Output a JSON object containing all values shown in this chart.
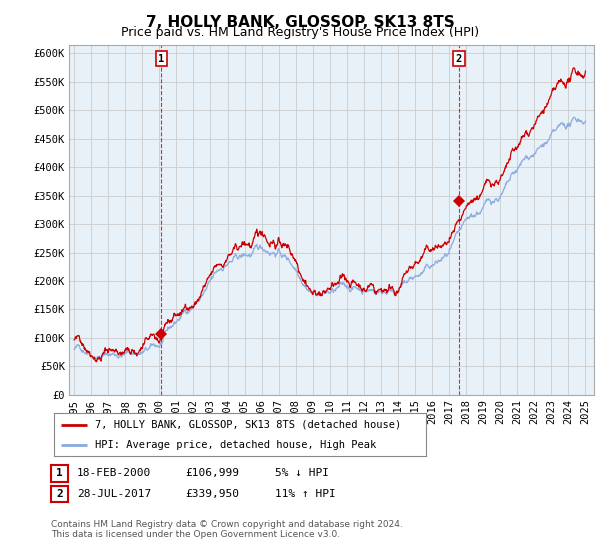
{
  "title": "7, HOLLY BANK, GLOSSOP, SK13 8TS",
  "subtitle": "Price paid vs. HM Land Registry's House Price Index (HPI)",
  "yticks": [
    0,
    50000,
    100000,
    150000,
    200000,
    250000,
    300000,
    350000,
    400000,
    450000,
    500000,
    550000,
    600000
  ],
  "ylim": [
    0,
    615000
  ],
  "xlim_start": 1994.7,
  "xlim_end": 2025.5,
  "sale1_x": 2000.12,
  "sale1_y": 106999,
  "sale1_label": "1",
  "sale1_date": "18-FEB-2000",
  "sale1_price": "£106,999",
  "sale1_note": "5% ↓ HPI",
  "sale2_x": 2017.58,
  "sale2_y": 339950,
  "sale2_label": "2",
  "sale2_date": "28-JUL-2017",
  "sale2_price": "£339,950",
  "sale2_note": "11% ↑ HPI",
  "line_house_color": "#cc0000",
  "line_hpi_color": "#88aadd",
  "chart_bg_color": "#e8f0f8",
  "legend_house_label": "7, HOLLY BANK, GLOSSOP, SK13 8TS (detached house)",
  "legend_hpi_label": "HPI: Average price, detached house, High Peak",
  "footer": "Contains HM Land Registry data © Crown copyright and database right 2024.\nThis data is licensed under the Open Government Licence v3.0.",
  "background_color": "#ffffff",
  "grid_color": "#cccccc",
  "title_fontsize": 11,
  "subtitle_fontsize": 9,
  "tick_fontsize": 7.5
}
